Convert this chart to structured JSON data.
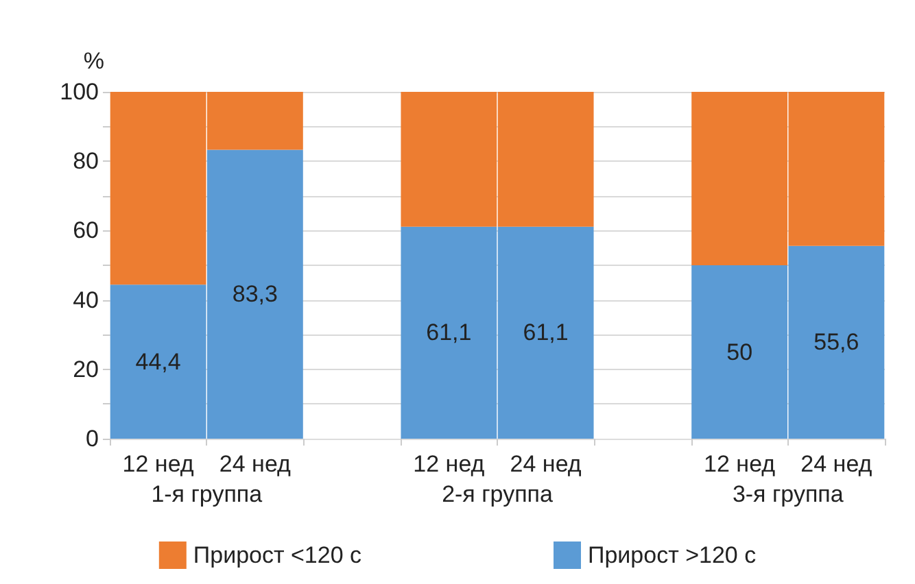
{
  "chart_data": {
    "type": "bar",
    "stacked": true,
    "ylabel": "%",
    "categories": [
      "12 нед",
      "24 нед",
      null,
      "12 нед",
      "24 нед",
      null,
      "12 нед",
      "24 нед"
    ],
    "series": [
      {
        "name": "Прирост >120 с",
        "color": "#5b9bd5",
        "values": [
          44.4,
          83.3,
          null,
          61.1,
          61.1,
          null,
          50,
          55.6
        ],
        "value_labels": [
          "44,4",
          "83,3",
          null,
          "61,1",
          "61,1",
          null,
          "50",
          "55,6"
        ]
      },
      {
        "name": "Прирост <120 с",
        "color": "#ed7d31",
        "values": [
          55.6,
          16.7,
          null,
          38.9,
          38.9,
          null,
          50,
          44.4
        ]
      }
    ],
    "annotations": [
      "1-я группа",
      "2-я группа",
      "3-я группа"
    ],
    "ylim": [
      0,
      100
    ],
    "yticks": [
      0,
      {
        "value": 10,
        "label": null
      },
      20,
      {
        "value": 30,
        "label": null
      },
      40,
      {
        "value": 50,
        "label": null
      },
      60,
      {
        "value": 70,
        "label": null
      },
      80,
      {
        "value": 90,
        "label": null
      },
      100
    ],
    "grid": "y",
    "legend": "bottom"
  }
}
